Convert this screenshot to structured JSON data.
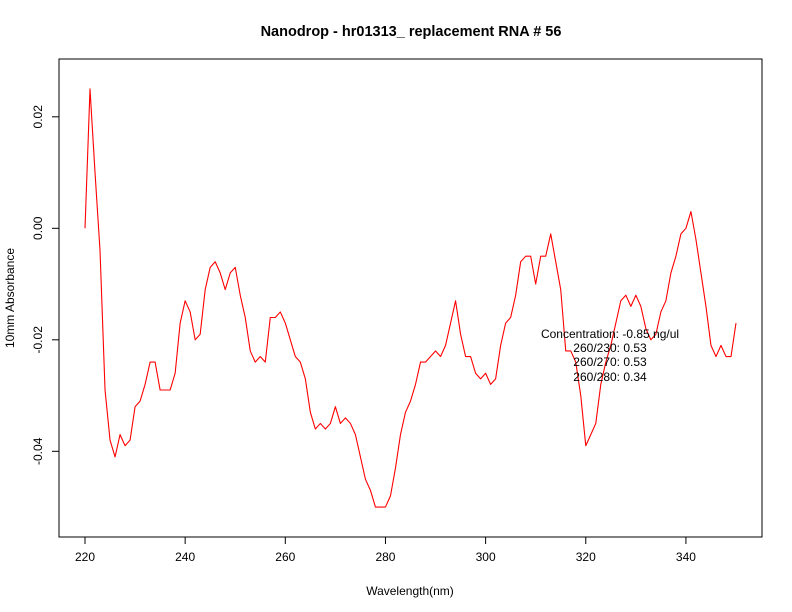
{
  "chart_data": {
    "type": "line",
    "title": "Nanodrop - hr01313_  replacement RNA # 56",
    "xlabel": "Wavelength(nm)",
    "ylabel": "10mm Absorbance",
    "xlim": [
      220,
      350
    ],
    "ylim": [
      -0.0525,
      0.0275
    ],
    "x_ticks": [
      220,
      240,
      260,
      280,
      300,
      320,
      340
    ],
    "x_tick_labels": [
      "220",
      "240",
      "260",
      "280",
      "300",
      "320",
      "340"
    ],
    "y_ticks": [
      -0.04,
      -0.02,
      0.0,
      0.02
    ],
    "y_tick_labels": [
      "-0.04",
      "-0.02",
      "0.00",
      "0.02"
    ],
    "grid": false,
    "legend": "none",
    "series": [
      {
        "color": "#ff0000",
        "x": [
          220,
          221,
          222,
          223,
          224,
          225,
          226,
          227,
          228,
          229,
          230,
          231,
          232,
          233,
          234,
          235,
          236,
          237,
          238,
          239,
          240,
          241,
          242,
          243,
          244,
          245,
          246,
          247,
          248,
          249,
          250,
          251,
          252,
          253,
          254,
          255,
          256,
          257,
          258,
          259,
          260,
          261,
          262,
          263,
          264,
          265,
          266,
          267,
          268,
          269,
          270,
          271,
          272,
          273,
          274,
          275,
          276,
          277,
          278,
          279,
          280,
          281,
          282,
          283,
          284,
          285,
          286,
          287,
          288,
          289,
          290,
          291,
          292,
          293,
          294,
          295,
          296,
          297,
          298,
          299,
          300,
          301,
          302,
          303,
          304,
          305,
          306,
          307,
          308,
          309,
          310,
          311,
          312,
          313,
          314,
          315,
          316,
          317,
          318,
          319,
          320,
          321,
          322,
          323,
          324,
          325,
          326,
          327,
          328,
          329,
          330,
          331,
          332,
          333,
          334,
          335,
          336,
          337,
          338,
          339,
          340,
          341,
          342,
          343,
          344,
          345,
          346,
          347,
          348,
          349,
          350
        ],
        "y": [
          0.0,
          0.025,
          0.01,
          -0.004,
          -0.029,
          -0.038,
          -0.041,
          -0.037,
          -0.039,
          -0.038,
          -0.032,
          -0.031,
          -0.028,
          -0.024,
          -0.024,
          -0.029,
          -0.029,
          -0.029,
          -0.026,
          -0.017,
          -0.013,
          -0.015,
          -0.02,
          -0.019,
          -0.011,
          -0.007,
          -0.006,
          -0.008,
          -0.011,
          -0.008,
          -0.007,
          -0.012,
          -0.016,
          -0.022,
          -0.024,
          -0.023,
          -0.024,
          -0.016,
          -0.016,
          -0.015,
          -0.017,
          -0.02,
          -0.023,
          -0.024,
          -0.027,
          -0.033,
          -0.036,
          -0.035,
          -0.036,
          -0.035,
          -0.032,
          -0.035,
          -0.034,
          -0.035,
          -0.037,
          -0.041,
          -0.045,
          -0.047,
          -0.05,
          -0.05,
          -0.05,
          -0.048,
          -0.043,
          -0.037,
          -0.033,
          -0.031,
          -0.028,
          -0.024,
          -0.024,
          -0.023,
          -0.022,
          -0.023,
          -0.021,
          -0.017,
          -0.013,
          -0.019,
          -0.023,
          -0.023,
          -0.026,
          -0.027,
          -0.026,
          -0.028,
          -0.027,
          -0.021,
          -0.017,
          -0.016,
          -0.012,
          -0.006,
          -0.005,
          -0.005,
          -0.01,
          -0.005,
          -0.005,
          -0.001,
          -0.006,
          -0.011,
          -0.022,
          -0.022,
          -0.024,
          -0.03,
          -0.039,
          -0.037,
          -0.035,
          -0.028,
          -0.024,
          -0.021,
          -0.017,
          -0.013,
          -0.012,
          -0.014,
          -0.012,
          -0.014,
          -0.018,
          -0.02,
          -0.019,
          -0.015,
          -0.013,
          -0.008,
          -0.005,
          -0.001,
          0.0,
          0.003,
          -0.002,
          -0.008,
          -0.014,
          -0.021,
          -0.023,
          -0.021,
          -0.023,
          -0.023,
          -0.017
        ]
      }
    ],
    "annotation": {
      "lines": [
        "Concentration: -0.85 ng/ul",
        "260/230: 0.53",
        "260/270: 0.53",
        "260/280: 0.34"
      ]
    }
  }
}
